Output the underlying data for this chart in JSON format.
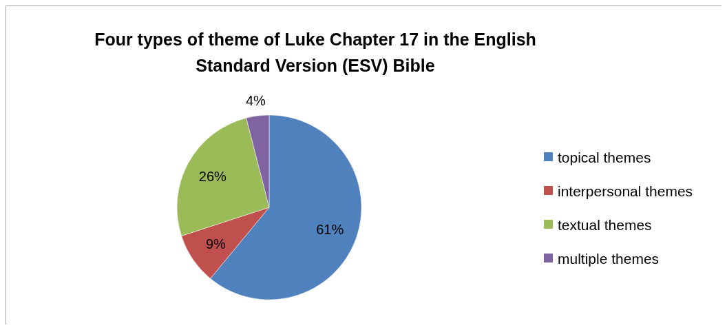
{
  "chart_data": {
    "type": "pie",
    "title": "Four types of theme of Luke Chapter 17 in the English Standard Version (ESV) Bible",
    "categories": [
      "topical themes",
      "interpersonal themes",
      "textual themes",
      "multiple themes"
    ],
    "values": [
      61,
      9,
      26,
      4
    ],
    "value_labels": [
      "61%",
      "9%",
      "26%",
      "4%"
    ],
    "colors": [
      "#4f81bd",
      "#c0504d",
      "#9bbb59",
      "#8064a2"
    ],
    "legend": "right"
  }
}
